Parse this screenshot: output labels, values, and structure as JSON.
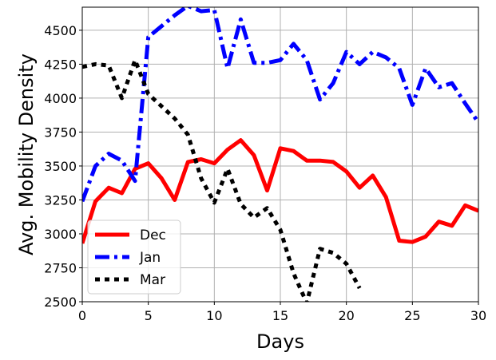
{
  "chart_data": {
    "type": "line",
    "title": "",
    "xlabel": "Days",
    "ylabel": "Avg. Mobility Density",
    "xlim": [
      0,
      30
    ],
    "ylim": [
      2500,
      4670
    ],
    "xticks": [
      0,
      5,
      10,
      15,
      20,
      25,
      30
    ],
    "yticks": [
      2500,
      2750,
      3000,
      3250,
      3500,
      3750,
      4000,
      4250,
      4500
    ],
    "grid": true,
    "legend_position": "lower-left",
    "series": [
      {
        "name": "Dec",
        "color": "#ff0000",
        "style": "solid",
        "x": [
          0,
          1,
          2,
          3,
          4,
          5,
          6,
          7,
          8,
          9,
          10,
          11,
          12,
          13,
          14,
          15,
          16,
          17,
          18,
          19,
          20,
          21,
          22,
          23,
          24,
          25,
          26,
          27,
          28,
          29,
          30
        ],
        "y": [
          2930,
          3240,
          3340,
          3300,
          3480,
          3520,
          3410,
          3250,
          3530,
          3550,
          3520,
          3620,
          3690,
          3580,
          3320,
          3630,
          3610,
          3540,
          3540,
          3530,
          3460,
          3340,
          3430,
          3270,
          2950,
          2940,
          2980,
          3090,
          3060,
          3210,
          3170
        ]
      },
      {
        "name": "Jan",
        "color": "#0000ff",
        "style": "dashdot",
        "x": [
          0,
          1,
          2,
          3,
          4,
          5,
          6,
          7,
          8,
          9,
          10,
          11,
          12,
          13,
          14,
          15,
          16,
          17,
          18,
          19,
          20,
          21,
          22,
          23,
          24,
          25,
          26,
          27,
          28,
          29,
          30
        ],
        "y": [
          3240,
          3500,
          3590,
          3540,
          3390,
          4450,
          4530,
          4610,
          4680,
          4640,
          4650,
          4220,
          4580,
          4260,
          4260,
          4280,
          4400,
          4280,
          3990,
          4110,
          4340,
          4250,
          4340,
          4300,
          4220,
          3950,
          4220,
          4080,
          4110,
          3960,
          3820
        ]
      },
      {
        "name": "Mar",
        "color": "#000000",
        "style": "dotted",
        "x": [
          0,
          1,
          2,
          3,
          4,
          5,
          6,
          7,
          8,
          9,
          10,
          11,
          12,
          13,
          14,
          15,
          16,
          17,
          18,
          19,
          20,
          21
        ],
        "y": [
          4230,
          4250,
          4240,
          4000,
          4280,
          4030,
          3940,
          3850,
          3730,
          3410,
          3230,
          3480,
          3220,
          3120,
          3190,
          3030,
          2710,
          2490,
          2890,
          2860,
          2780,
          2600
        ]
      }
    ]
  }
}
